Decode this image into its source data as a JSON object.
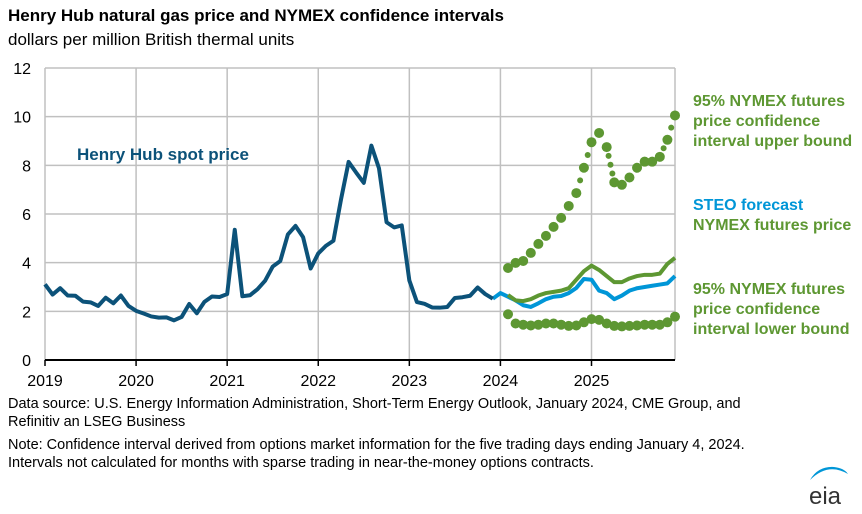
{
  "title": "Henry Hub natural gas price and NYMEX confidence intervals",
  "subtitle": "dollars per million British thermal units",
  "footer": {
    "source": "Data source: U.S. Energy Information Administration, Short-Term Energy Outlook, January 2024, CME Group, and Refinitiv an LSEG Business",
    "note": "Note: Confidence interval derived from options market information for the five trading days ending January 4, 2024. Intervals not calculated for months with sparse trading in near-the-money options contracts."
  },
  "logo": {
    "text": "eia",
    "icon": "eia-logo-icon"
  },
  "colors": {
    "spot": "#0c5279",
    "steo": "#0096d7",
    "nymex": "#5d9732",
    "grid": "#c0c0c0",
    "axis": "#000000"
  },
  "chart_data": {
    "type": "line",
    "title": "Henry Hub natural gas price and NYMEX confidence intervals",
    "ylabel": "dollars per million British thermal units",
    "xlabel": "",
    "ylim": [
      0,
      12
    ],
    "yticks": [
      0,
      2,
      4,
      6,
      8,
      10,
      12
    ],
    "xrange_months": [
      "2019-01",
      "2025-12"
    ],
    "xticks": [
      "2019",
      "2020",
      "2021",
      "2022",
      "2023",
      "2024",
      "2025"
    ],
    "grid": true,
    "legend": "direct labels, right side",
    "annotations": [
      {
        "text": "Henry Hub spot price",
        "series": "spot"
      },
      {
        "text": "95% NYMEX futures price confidence interval upper bound",
        "series": "upper"
      },
      {
        "text": "STEO forecast",
        "series": "steo"
      },
      {
        "text": "NYMEX futures price",
        "series": "nymex"
      },
      {
        "text": "95% NYMEX futures price confidence interval lower bound",
        "series": "lower"
      }
    ],
    "series": [
      {
        "key": "spot",
        "name": "Henry Hub spot price",
        "start": "2019-01",
        "style": "solid",
        "values": [
          3.11,
          2.69,
          2.95,
          2.65,
          2.64,
          2.4,
          2.37,
          2.22,
          2.56,
          2.33,
          2.65,
          2.22,
          2.02,
          1.91,
          1.79,
          1.74,
          1.75,
          1.63,
          1.77,
          2.3,
          1.92,
          2.39,
          2.61,
          2.59,
          2.71,
          5.35,
          2.62,
          2.66,
          2.91,
          3.26,
          3.84,
          4.07,
          5.16,
          5.51,
          5.05,
          3.76,
          4.38,
          4.69,
          4.9,
          6.6,
          8.14,
          7.7,
          7.28,
          8.81,
          7.88,
          5.66,
          5.45,
          5.53,
          3.27,
          2.38,
          2.31,
          2.16,
          2.15,
          2.18,
          2.55,
          2.58,
          2.64,
          2.98,
          2.71,
          2.52
        ]
      },
      {
        "key": "steo",
        "name": "STEO forecast",
        "start": "2023-12",
        "style": "solid",
        "values": [
          2.52,
          2.75,
          2.6,
          2.45,
          2.25,
          2.18,
          2.33,
          2.5,
          2.6,
          2.63,
          2.75,
          2.96,
          3.33,
          3.3,
          2.85,
          2.75,
          2.5,
          2.65,
          2.85,
          2.95,
          3.0,
          3.05,
          3.1,
          3.15,
          3.45
        ]
      },
      {
        "key": "nymex",
        "name": "NYMEX futures price",
        "start": "2024-02",
        "style": "solid",
        "values": [
          2.67,
          2.45,
          2.42,
          2.5,
          2.65,
          2.75,
          2.8,
          2.85,
          2.95,
          3.3,
          3.65,
          3.88,
          3.7,
          3.45,
          3.2,
          3.2,
          3.35,
          3.45,
          3.5,
          3.5,
          3.55,
          3.95,
          4.2
        ]
      },
      {
        "key": "upper",
        "name": "95% NYMEX futures price confidence interval upper bound",
        "start": "2024-02",
        "style": "dotted",
        "values": [
          3.78,
          3.99,
          4.07,
          4.4,
          4.77,
          5.1,
          5.47,
          5.84,
          6.33,
          6.86,
          7.9,
          8.95,
          9.33,
          8.75,
          7.3,
          7.2,
          7.5,
          7.9,
          8.15,
          8.15,
          8.35,
          9.05,
          10.05
        ]
      },
      {
        "key": "lower",
        "name": "95% NYMEX futures price confidence interval lower bound",
        "start": "2024-02",
        "style": "dotted",
        "values": [
          1.88,
          1.5,
          1.45,
          1.42,
          1.45,
          1.5,
          1.5,
          1.45,
          1.4,
          1.42,
          1.55,
          1.68,
          1.65,
          1.5,
          1.4,
          1.38,
          1.4,
          1.42,
          1.45,
          1.45,
          1.45,
          1.55,
          1.78
        ]
      }
    ]
  }
}
